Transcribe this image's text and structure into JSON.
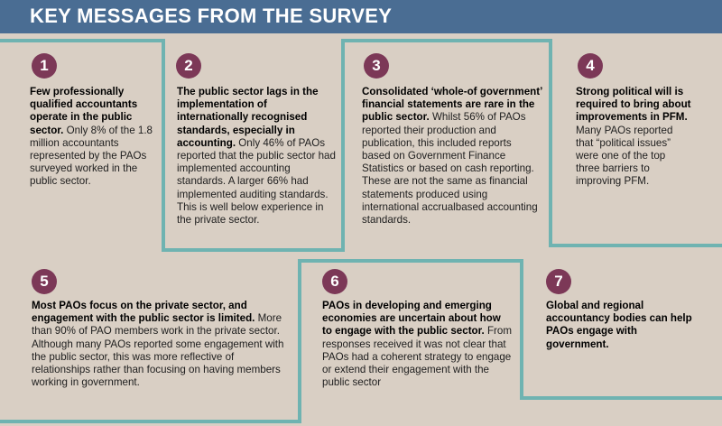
{
  "header": {
    "title": "KEY MESSAGES FROM THE SURVEY"
  },
  "colors": {
    "header_bg": "#4a6d93",
    "badge": "#7c3857",
    "line": "#6fb3b1",
    "background": "#d9cfc4"
  },
  "messages": [
    {
      "number": "1",
      "bold": "Few professionally qualified accountants operate in the public sector.",
      "text": " Only 8% of the 1.8 million accountants represented by the PAOs surveyed worked in the public sector."
    },
    {
      "number": "2",
      "bold": "The public sector lags in the implementation of internationally recognised standards, especially in accounting.",
      "text": " Only 46% of PAOs reported that the public sector had implemented accounting standards. A larger 66% had implemented auditing standards. This is well below experience in the private sector."
    },
    {
      "number": "3",
      "bold": "Consolidated ‘whole-of government’ financial statements are rare in the public sector.",
      "text": " Whilst 56% of PAOs reported their production and publication, this included reports based on Government Finance Statistics or based on cash reporting. These are not the same as financial statements produced using international accrualbased accounting standards."
    },
    {
      "number": "4",
      "bold": "Strong political will is required to bring about improvements in PFM.",
      "text": " Many PAOs reported that “political issues” were one of the top three barriers to improving PFM."
    },
    {
      "number": "5",
      "bold": "Most PAOs focus on the private sector, and engagement with the public sector is limited.",
      "text": " More than 90% of PAO members work in the private sector. Although many PAOs reported some engagement with the public sector, this was more reflective of relationships rather than focusing on having members working in government."
    },
    {
      "number": "6",
      "bold": "PAOs in developing and emerging economies are uncertain about how to engage with the public sector.",
      "text": " From responses received it was not clear that PAOs had a coherent strategy to engage or extend their engagement with the public sector"
    },
    {
      "number": "7",
      "bold": "Global and regional accountancy bodies can help PAOs engage with government.",
      "text": ""
    }
  ]
}
